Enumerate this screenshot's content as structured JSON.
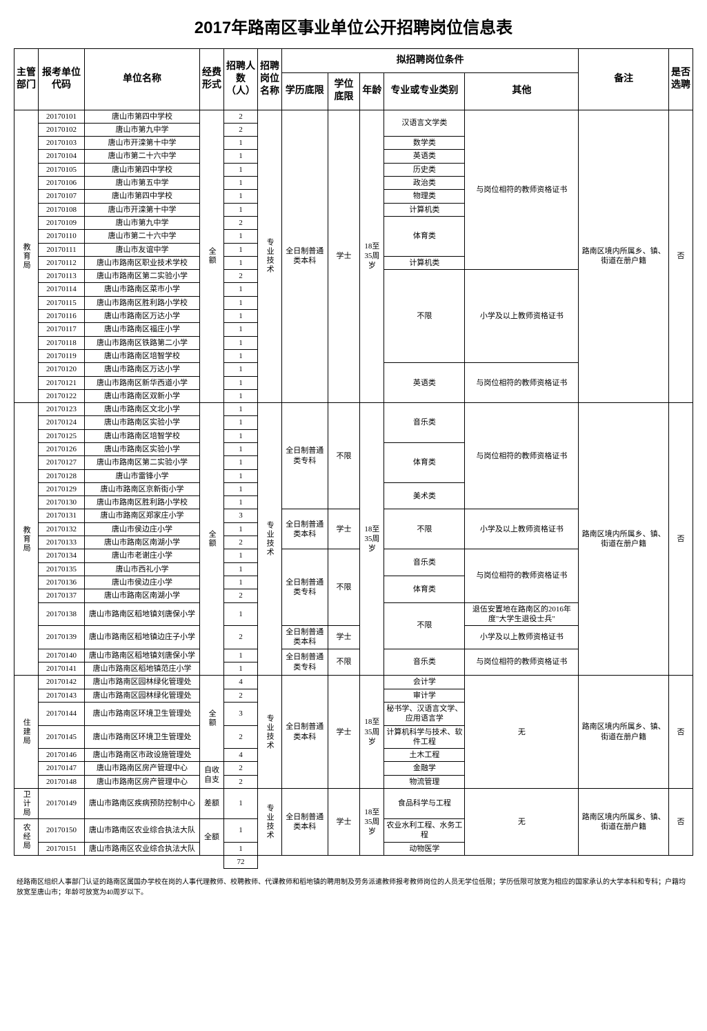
{
  "title": "2017年路南区事业单位公开招聘岗位信息表",
  "headers": {
    "dept": "主管部门",
    "code": "报考单位代码",
    "unit": "单位名称",
    "funding": "经费形式",
    "count": "招聘人数（人）",
    "position": "招聘岗位名称",
    "conditions": "拟招聘岗位条件",
    "edu": "学历底限",
    "degree": "学位底限",
    "age": "年龄",
    "major": "专业或专业类别",
    "other": "其他",
    "remark": "备注",
    "select": "是否选聘"
  },
  "depts": {
    "edu": "教育局",
    "housing": "住建局",
    "health": "卫计局",
    "agri": "农经局"
  },
  "funding": {
    "full": "全额",
    "diff": "差额",
    "self": "自收自支"
  },
  "position": "专业技术",
  "edu": {
    "bachelor": "全日制普通类本科",
    "specialist": "全日制普通类专科"
  },
  "degree": {
    "bachelor": "学士",
    "none": "不限"
  },
  "age": "18至35周岁",
  "age2": "18至35周岁",
  "majors": {
    "chinese": "汉语言文学类",
    "math": "数学类",
    "english": "英语类",
    "history": "历史类",
    "politics": "政治类",
    "physics": "物理类",
    "cs": "计算机类",
    "pe": "体育类",
    "none": "不限",
    "music": "音乐类",
    "art": "美术类",
    "accounting": "会计学",
    "audit": "审计学",
    "secretary": "秘书学、汉语言文学、应用语言学",
    "cstech": "计算机科学与技术、软件工程",
    "civil": "土木工程",
    "finance": "金融学",
    "logistics": "物流管理",
    "food": "食品科学与工程",
    "water": "农业水利工程、水务工程",
    "vet": "动物医学"
  },
  "others": {
    "teacher_cert": "与岗位相符的教师资格证书",
    "primary_cert": "小学及以上教师资格证书",
    "teacher_cert2": "与岗位相符的教师资格证书",
    "veteran": "退伍安置地在路南区的2016年度\"大学生退役士兵\"",
    "none": "无"
  },
  "remarks": {
    "lunan": "路南区境内所属乡、镇、街道在册户籍"
  },
  "select_no": "否",
  "rows": [
    {
      "code": "20170101",
      "unit": "唐山市第四中学校",
      "count": "2"
    },
    {
      "code": "20170102",
      "unit": "唐山市第九中学",
      "count": "2"
    },
    {
      "code": "20170103",
      "unit": "唐山市开滦第十中学",
      "count": "1"
    },
    {
      "code": "20170104",
      "unit": "唐山市第二十六中学",
      "count": "1"
    },
    {
      "code": "20170105",
      "unit": "唐山市第四中学校",
      "count": "1"
    },
    {
      "code": "20170106",
      "unit": "唐山市第五中学",
      "count": "1"
    },
    {
      "code": "20170107",
      "unit": "唐山市第四中学校",
      "count": "1"
    },
    {
      "code": "20170108",
      "unit": "唐山市开滦第十中学",
      "count": "1"
    },
    {
      "code": "20170109",
      "unit": "唐山市第九中学",
      "count": "2"
    },
    {
      "code": "20170110",
      "unit": "唐山市第二十六中学",
      "count": "1"
    },
    {
      "code": "20170111",
      "unit": "唐山市友谊中学",
      "count": "1"
    },
    {
      "code": "20170112",
      "unit": "唐山市路南区职业技术学校",
      "count": "1"
    },
    {
      "code": "20170113",
      "unit": "唐山市路南区第二实验小学",
      "count": "2"
    },
    {
      "code": "20170114",
      "unit": "唐山市路南区菜市小学",
      "count": "1"
    },
    {
      "code": "20170115",
      "unit": "唐山市路南区胜利路小学校",
      "count": "1"
    },
    {
      "code": "20170116",
      "unit": "唐山市路南区万达小学",
      "count": "1"
    },
    {
      "code": "20170117",
      "unit": "唐山市路南区福庄小学",
      "count": "1"
    },
    {
      "code": "20170118",
      "unit": "唐山市路南区铁路第二小学",
      "count": "1"
    },
    {
      "code": "20170119",
      "unit": "唐山市路南区培智学校",
      "count": "1"
    },
    {
      "code": "20170120",
      "unit": "唐山市路南区万达小学",
      "count": "1"
    },
    {
      "code": "20170121",
      "unit": "唐山市路南区新华西道小学",
      "count": "1"
    },
    {
      "code": "20170122",
      "unit": "唐山市路南区双新小学",
      "count": "1"
    },
    {
      "code": "20170123",
      "unit": "唐山市路南区文北小学",
      "count": "1"
    },
    {
      "code": "20170124",
      "unit": "唐山市路南区实验小学",
      "count": "1"
    },
    {
      "code": "20170125",
      "unit": "唐山市路南区培智学校",
      "count": "1"
    },
    {
      "code": "20170126",
      "unit": "唐山市路南区实验小学",
      "count": "1"
    },
    {
      "code": "20170127",
      "unit": "唐山市路南区第二实验小学",
      "count": "1"
    },
    {
      "code": "20170128",
      "unit": "唐山市雷锋小学",
      "count": "1"
    },
    {
      "code": "20170129",
      "unit": "唐山市路南区京新街小学",
      "count": "1"
    },
    {
      "code": "20170130",
      "unit": "唐山市路南区胜利路小学校",
      "count": "1"
    },
    {
      "code": "20170131",
      "unit": "唐山市路南区郑家庄小学",
      "count": "3"
    },
    {
      "code": "20170132",
      "unit": "唐山市侯边庄小学",
      "count": "1"
    },
    {
      "code": "20170133",
      "unit": "唐山市路南区南湖小学",
      "count": "2"
    },
    {
      "code": "20170134",
      "unit": "唐山市老谢庄小学",
      "count": "1"
    },
    {
      "code": "20170135",
      "unit": "唐山市西礼小学",
      "count": "1"
    },
    {
      "code": "20170136",
      "unit": "唐山市侯边庄小学",
      "count": "1"
    },
    {
      "code": "20170137",
      "unit": "唐山市路南区南湖小学",
      "count": "2"
    },
    {
      "code": "20170138",
      "unit": "唐山市路南区稻地镇刘唐保小学",
      "count": "1"
    },
    {
      "code": "20170139",
      "unit": "唐山市路南区稻地镇边庄子小学",
      "count": "2"
    },
    {
      "code": "20170140",
      "unit": "唐山市路南区稻地镇刘唐保小学",
      "count": "1"
    },
    {
      "code": "20170141",
      "unit": "唐山市路南区稻地镇范庄小学",
      "count": "1"
    },
    {
      "code": "20170142",
      "unit": "唐山市路南区园林绿化管理处",
      "count": "4"
    },
    {
      "code": "20170143",
      "unit": "唐山市路南区园林绿化管理处",
      "count": "2"
    },
    {
      "code": "20170144",
      "unit": "唐山市路南区环境卫生管理处",
      "count": "3"
    },
    {
      "code": "20170145",
      "unit": "唐山市路南区环境卫生管理处",
      "count": "2"
    },
    {
      "code": "20170146",
      "unit": "唐山市路南区市政设施管理处",
      "count": "4"
    },
    {
      "code": "20170147",
      "unit": "唐山市路南区房产管理中心",
      "count": "2"
    },
    {
      "code": "20170148",
      "unit": "唐山市路南区房产管理中心",
      "count": "2"
    },
    {
      "code": "20170149",
      "unit": "唐山市路南区疾病预防控制中心",
      "count": "1"
    },
    {
      "code": "20170150",
      "unit": "唐山市路南区农业综合执法大队",
      "count": "1"
    },
    {
      "code": "20170151",
      "unit": "唐山市路南区农业综合执法大队",
      "count": "1"
    }
  ],
  "total": "72",
  "footnote": "经路南区组织人事部门认证的路南区属国办学校在岗的人事代理教师、校聘教师、代课教师和稻地镇的聘用制及劳务派遣教师报考教师岗位的人员无学位低限；学历低限可放宽为相应的国家承认的大学本科和专科；户籍均放宽至唐山市；年龄可放宽为40周岁以下。"
}
